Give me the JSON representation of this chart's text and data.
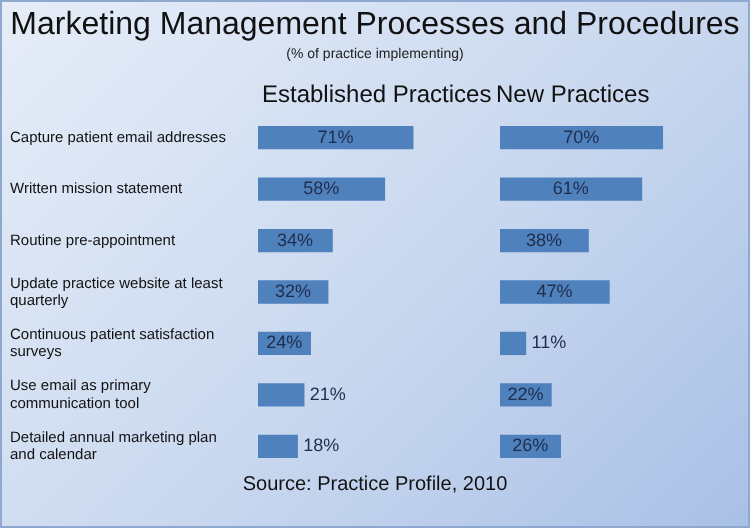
{
  "chart_data": [
    {
      "type": "bar",
      "title": "Marketing Management Processes and Procedures",
      "subtitle": "(% of practice implementing)",
      "orientation": "horizontal",
      "categories": [
        "Capture patient email addresses",
        "Written mission statement",
        "Routine pre-appointment",
        "Update practice website at least quarterly",
        "Continuous patient satisfaction surveys",
        "Use email as primary communication tool",
        "Detailed annual marketing plan and calendar"
      ],
      "tick_labels": "y",
      "series": [
        {
          "name": "Established Practices",
          "color": "#4f81bd",
          "values": [
            71,
            58,
            34,
            32,
            24,
            21,
            18
          ],
          "value_labels": [
            "71%",
            "58%",
            "34%",
            "32%",
            "24%",
            "21%",
            "18%"
          ]
        }
      ]
    },
    {
      "type": "bar",
      "orientation": "horizontal",
      "categories": [
        null,
        null,
        null,
        null,
        null,
        null,
        null
      ],
      "tick_labels": false,
      "annotations": [
        "Source: Practice Profile, 2010"
      ],
      "series": [
        {
          "name": "New Practices",
          "color": "#4f81bd",
          "values": [
            70,
            61,
            38,
            47,
            11,
            22,
            26
          ],
          "value_labels": [
            "70%",
            "61%",
            "38%",
            "47%",
            "11%",
            "22%",
            "26%"
          ]
        }
      ]
    }
  ]
}
